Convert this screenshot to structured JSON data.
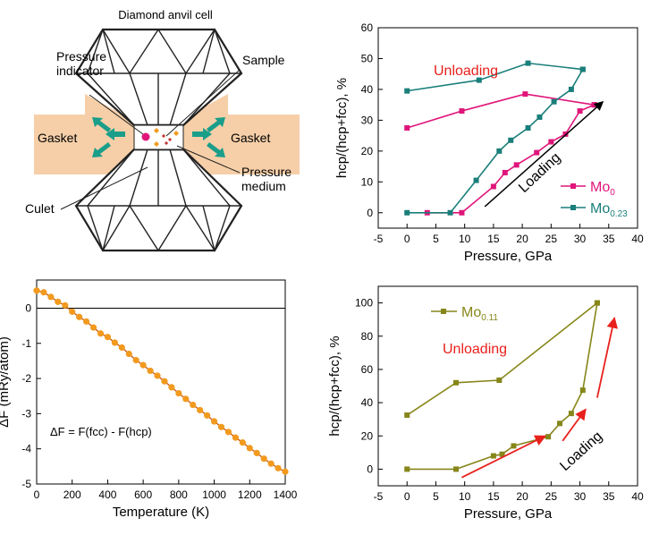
{
  "diagram": {
    "title": "Diamond anvil cell",
    "labels": {
      "pressure_indicator_1": "Pressure",
      "pressure_indicator_2": "indicator",
      "sample": "Sample",
      "gasket_left": "Gasket",
      "gasket_right": "Gasket",
      "pressure_medium_1": "Pressure",
      "pressure_medium_2": "medium",
      "culet": "Culet"
    },
    "colors": {
      "gasket": "#f6cfa8",
      "arrow": "#1a9e8a",
      "sample": "#e0157a",
      "medium": "#f29a1e"
    }
  },
  "chart_data": [
    {
      "id": "mo-hcp-fraction",
      "type": "line",
      "xlabel": "Pressure, GPa",
      "ylabel": "hcp/(hcp+fcc), %",
      "xlim": [
        -5,
        40
      ],
      "ylim": [
        -5,
        60
      ],
      "xticks": [
        -5,
        0,
        5,
        10,
        15,
        20,
        25,
        30,
        35,
        40
      ],
      "yticks": [
        0,
        10,
        20,
        30,
        40,
        50,
        60
      ],
      "annotations": {
        "unloading": "Unloading",
        "loading": "Loading"
      },
      "legend": [
        {
          "series": "Mo0",
          "base": "Mo",
          "sub": "0",
          "color": "#e0157a"
        },
        {
          "series": "Mo0.23",
          "base": "Mo",
          "sub": "0.23",
          "color": "#1a7e7a"
        }
      ],
      "series": [
        {
          "name": "Mo0 loading",
          "color": "#e0157a",
          "x": [
            3.5,
            9.5,
            15,
            17,
            19,
            22.5,
            25,
            27.5,
            30,
            32.5
          ],
          "y": [
            0,
            0,
            8.5,
            13,
            15.5,
            19.5,
            23,
            25.5,
            33,
            35
          ]
        },
        {
          "name": "Mo0 unloading",
          "color": "#e0157a",
          "x": [
            32.5,
            20.5,
            9.5,
            0
          ],
          "y": [
            35,
            38.5,
            33,
            27.5
          ]
        },
        {
          "name": "Mo0.23 loading",
          "color": "#1a7e7a",
          "x": [
            0,
            7.5,
            12,
            16,
            18,
            21,
            23,
            25.5,
            28.5,
            30.5
          ],
          "y": [
            0,
            0,
            10.5,
            20,
            23.5,
            27.5,
            31,
            36,
            40,
            46.5
          ]
        },
        {
          "name": "Mo0.23 unloading",
          "color": "#1a7e7a",
          "x": [
            30.5,
            21,
            12.5,
            0
          ],
          "y": [
            46.5,
            48.5,
            43,
            39.5
          ]
        }
      ]
    },
    {
      "id": "delta-f",
      "type": "scatter",
      "xlabel": "Temperature (K)",
      "ylabel": "ΔF (mRy/atom)",
      "formula": "ΔF = F(fcc) - F(hcp)",
      "xlim": [
        0,
        1400
      ],
      "ylim": [
        -5,
        0.8
      ],
      "xticks": [
        0,
        200,
        400,
        600,
        800,
        1000,
        1200,
        1400
      ],
      "yticks": [
        -5,
        -4,
        -3,
        -2,
        -1,
        0
      ],
      "color": "#f29a1e",
      "fit_color": "#c85a14",
      "x": [
        0,
        40,
        80,
        120,
        160,
        200,
        240,
        280,
        320,
        360,
        400,
        440,
        480,
        520,
        560,
        600,
        640,
        680,
        720,
        760,
        800,
        840,
        880,
        920,
        960,
        1000,
        1040,
        1080,
        1120,
        1160,
        1200,
        1240,
        1280,
        1320,
        1360,
        1400
      ],
      "y": [
        0.5,
        0.45,
        0.32,
        0.18,
        0.08,
        -0.1,
        -0.25,
        -0.38,
        -0.55,
        -0.72,
        -0.82,
        -0.98,
        -1.12,
        -1.3,
        -1.48,
        -1.62,
        -1.78,
        -1.92,
        -2.08,
        -2.25,
        -2.42,
        -2.58,
        -2.75,
        -2.9,
        -3.05,
        -3.22,
        -3.38,
        -3.52,
        -3.68,
        -3.82,
        -3.98,
        -4.12,
        -4.28,
        -4.42,
        -4.55,
        -4.65
      ]
    },
    {
      "id": "mo011-hcp-fraction",
      "type": "line",
      "xlabel": "Pressure, GPa",
      "ylabel": "hcp/(hcp+fcc), %",
      "xlim": [
        -5,
        40
      ],
      "ylim": [
        -10,
        110
      ],
      "xticks": [
        -5,
        0,
        5,
        10,
        15,
        20,
        25,
        30,
        35,
        40
      ],
      "yticks": [
        0,
        20,
        40,
        60,
        80,
        100
      ],
      "annotations": {
        "unloading": "Unloading",
        "loading": "Loading"
      },
      "legend": [
        {
          "series": "Mo0.11",
          "base": "Mo",
          "sub": "0.11",
          "color": "#86861a"
        }
      ],
      "series": [
        {
          "name": "Mo0.11 loading",
          "color": "#86861a",
          "x": [
            0,
            8.5,
            15,
            16.5,
            18.5,
            24.5,
            26.5,
            28.5,
            30.5,
            33
          ],
          "y": [
            0,
            0,
            8,
            9,
            14,
            19.5,
            27.5,
            33.5,
            47.5,
            100
          ]
        },
        {
          "name": "Mo0.11 unloading",
          "color": "#86861a",
          "x": [
            33,
            16,
            8.5,
            0
          ],
          "y": [
            100,
            53.5,
            52,
            32.5
          ]
        }
      ]
    }
  ]
}
